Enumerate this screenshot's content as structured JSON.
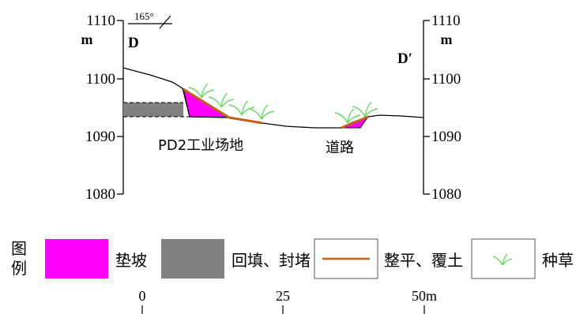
{
  "profile": {
    "left_axis": {
      "ticks": [
        "1110",
        "1100",
        "1090",
        "1080"
      ],
      "unit": "m",
      "section_label": "D"
    },
    "right_axis": {
      "ticks": [
        "1110",
        "1100",
        "1090",
        "1080"
      ],
      "unit": "m",
      "section_label": "D′"
    },
    "bearing": "165°",
    "area_labels": {
      "industrial_site": "PD2工业场地",
      "road": "道路"
    },
    "colors": {
      "slope_fill": "#ff00ff",
      "backfill": "#808080",
      "leveling_line": "#c0601a",
      "grass": "#6cd46c"
    }
  },
  "legend": {
    "title_chars": [
      "图",
      "例"
    ],
    "items": [
      {
        "label": "垫坡",
        "icon": "magenta-swatch"
      },
      {
        "label": "回填、封堵",
        "icon": "gray-swatch"
      },
      {
        "label": "整平、覆土",
        "icon": "brown-line"
      },
      {
        "label": "种草",
        "icon": "grass-icon"
      }
    ]
  },
  "scale_bar": {
    "labels": [
      "0",
      "25",
      "50m"
    ]
  }
}
